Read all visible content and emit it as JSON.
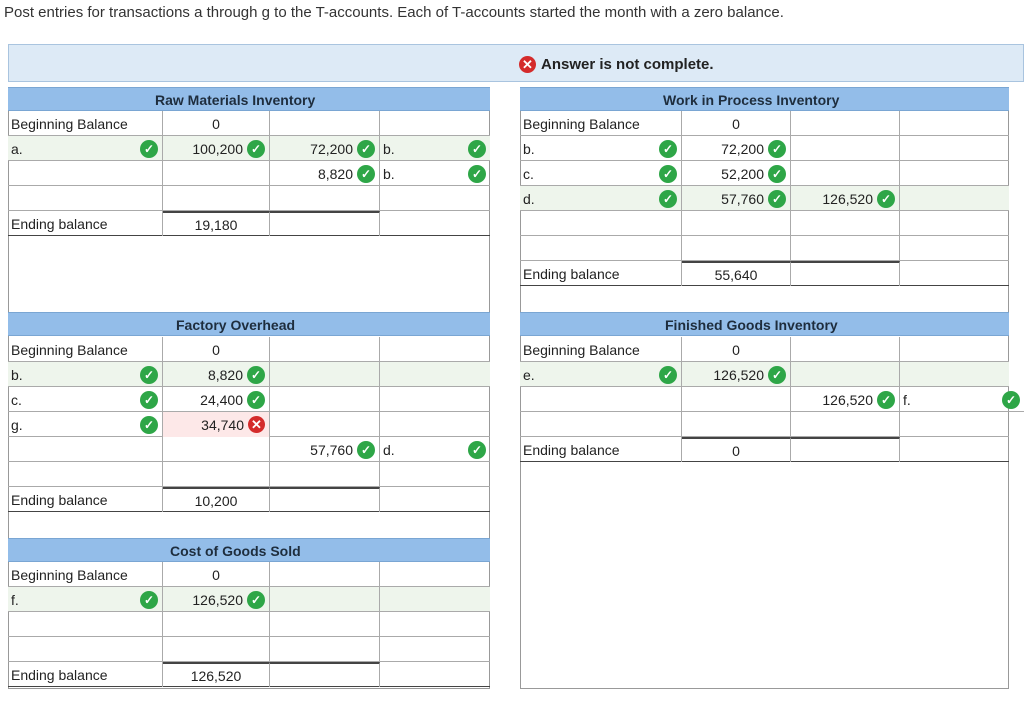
{
  "instruction": "Post entries for transactions a through g to the T-accounts. Each of T-accounts started the month with a zero balance.",
  "banner": {
    "status": "Answer is not complete."
  },
  "accounts": {
    "raw_materials": {
      "title": "Raw Materials Inventory",
      "beginning_label": "Beginning Balance",
      "beginning_value": "0",
      "debits": [
        {
          "label": "a.",
          "value": "100,200"
        }
      ],
      "credits": [
        {
          "value": "72,200",
          "label": "b."
        },
        {
          "value": "8,820",
          "label": "b."
        }
      ],
      "ending_label": "Ending balance",
      "ending_value": "19,180"
    },
    "wip": {
      "title": "Work in Process Inventory",
      "beginning_label": "Beginning Balance",
      "beginning_value": "0",
      "debits": [
        {
          "label": "b.",
          "value": "72,200"
        },
        {
          "label": "c.",
          "value": "52,200"
        },
        {
          "label": "d.",
          "value": "57,760"
        }
      ],
      "credits": [
        {
          "value": "126,520"
        }
      ],
      "ending_label": "Ending balance",
      "ending_value": "55,640"
    },
    "factory_overhead": {
      "title": "Factory Overhead",
      "beginning_label": "Beginning Balance",
      "beginning_value": "0",
      "debits": [
        {
          "label": "b.",
          "value": "8,820"
        },
        {
          "label": "c.",
          "value": "24,400"
        },
        {
          "label": "g.",
          "value": "34,740",
          "status": "incorrect"
        }
      ],
      "credits": [
        {
          "value": "57,760",
          "label": "d."
        }
      ],
      "ending_label": "Ending balance",
      "ending_value": "10,200"
    },
    "finished_goods": {
      "title": "Finished Goods Inventory",
      "beginning_label": "Beginning Balance",
      "beginning_value": "0",
      "debits": [
        {
          "label": "e.",
          "value": "126,520"
        }
      ],
      "credits": [
        {
          "value": "126,520",
          "label": "f."
        }
      ],
      "ending_label": "Ending balance",
      "ending_value": "0"
    },
    "cogs": {
      "title": "Cost of Goods Sold",
      "beginning_label": "Beginning Balance",
      "beginning_value": "0",
      "debits": [
        {
          "label": "f.",
          "value": "126,520"
        }
      ],
      "ending_label": "Ending balance",
      "ending_value": "126,520"
    }
  },
  "icons": {
    "correct": "check-circle-icon",
    "incorrect": "x-circle-icon"
  },
  "colors": {
    "correct": "#2ea647",
    "incorrect": "#d42b2b",
    "header": "#93bde9"
  }
}
